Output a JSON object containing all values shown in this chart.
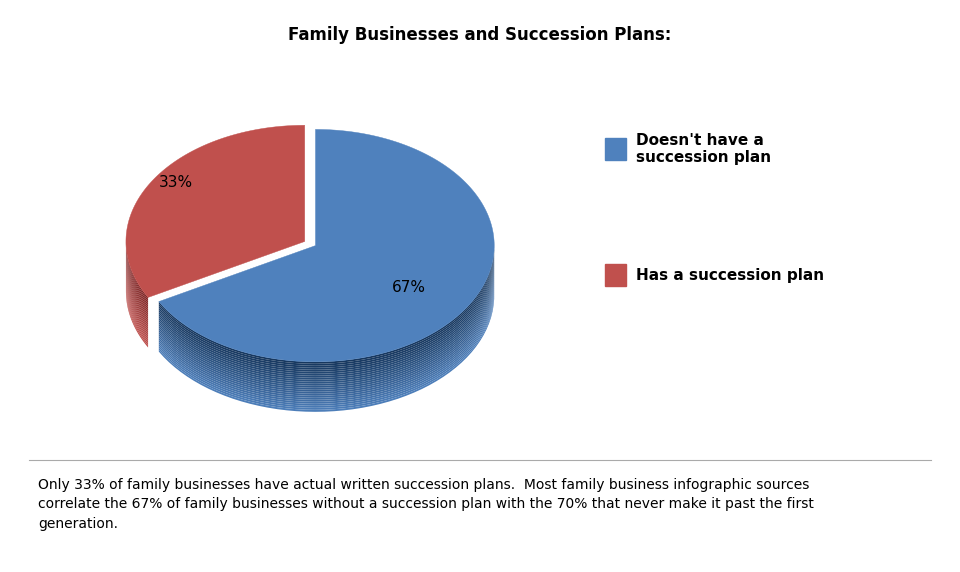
{
  "title": "Family Businesses and Succession Plans:",
  "title_fontsize": 12,
  "slices": [
    67,
    33
  ],
  "pct_labels": [
    "67%",
    "33%"
  ],
  "colors": [
    "#4F81BD",
    "#C0504D"
  ],
  "dark_colors": [
    "#17375E",
    "#7B1F1F"
  ],
  "explode_dist": [
    0,
    0.07
  ],
  "legend_labels": [
    "Doesn't have a\nsuccession plan",
    "Has a succession plan"
  ],
  "legend_colors": [
    "#4F81BD",
    "#C0504D"
  ],
  "annotation": "Only 33% of family businesses have actual written succession plans.  Most family business infographic sources\ncorrelate the 67% of family businesses without a succession plan with the 70% that never make it past the first\ngeneration.",
  "annotation_fontsize": 10,
  "background_color": "#FFFFFF",
  "startangle": 90
}
